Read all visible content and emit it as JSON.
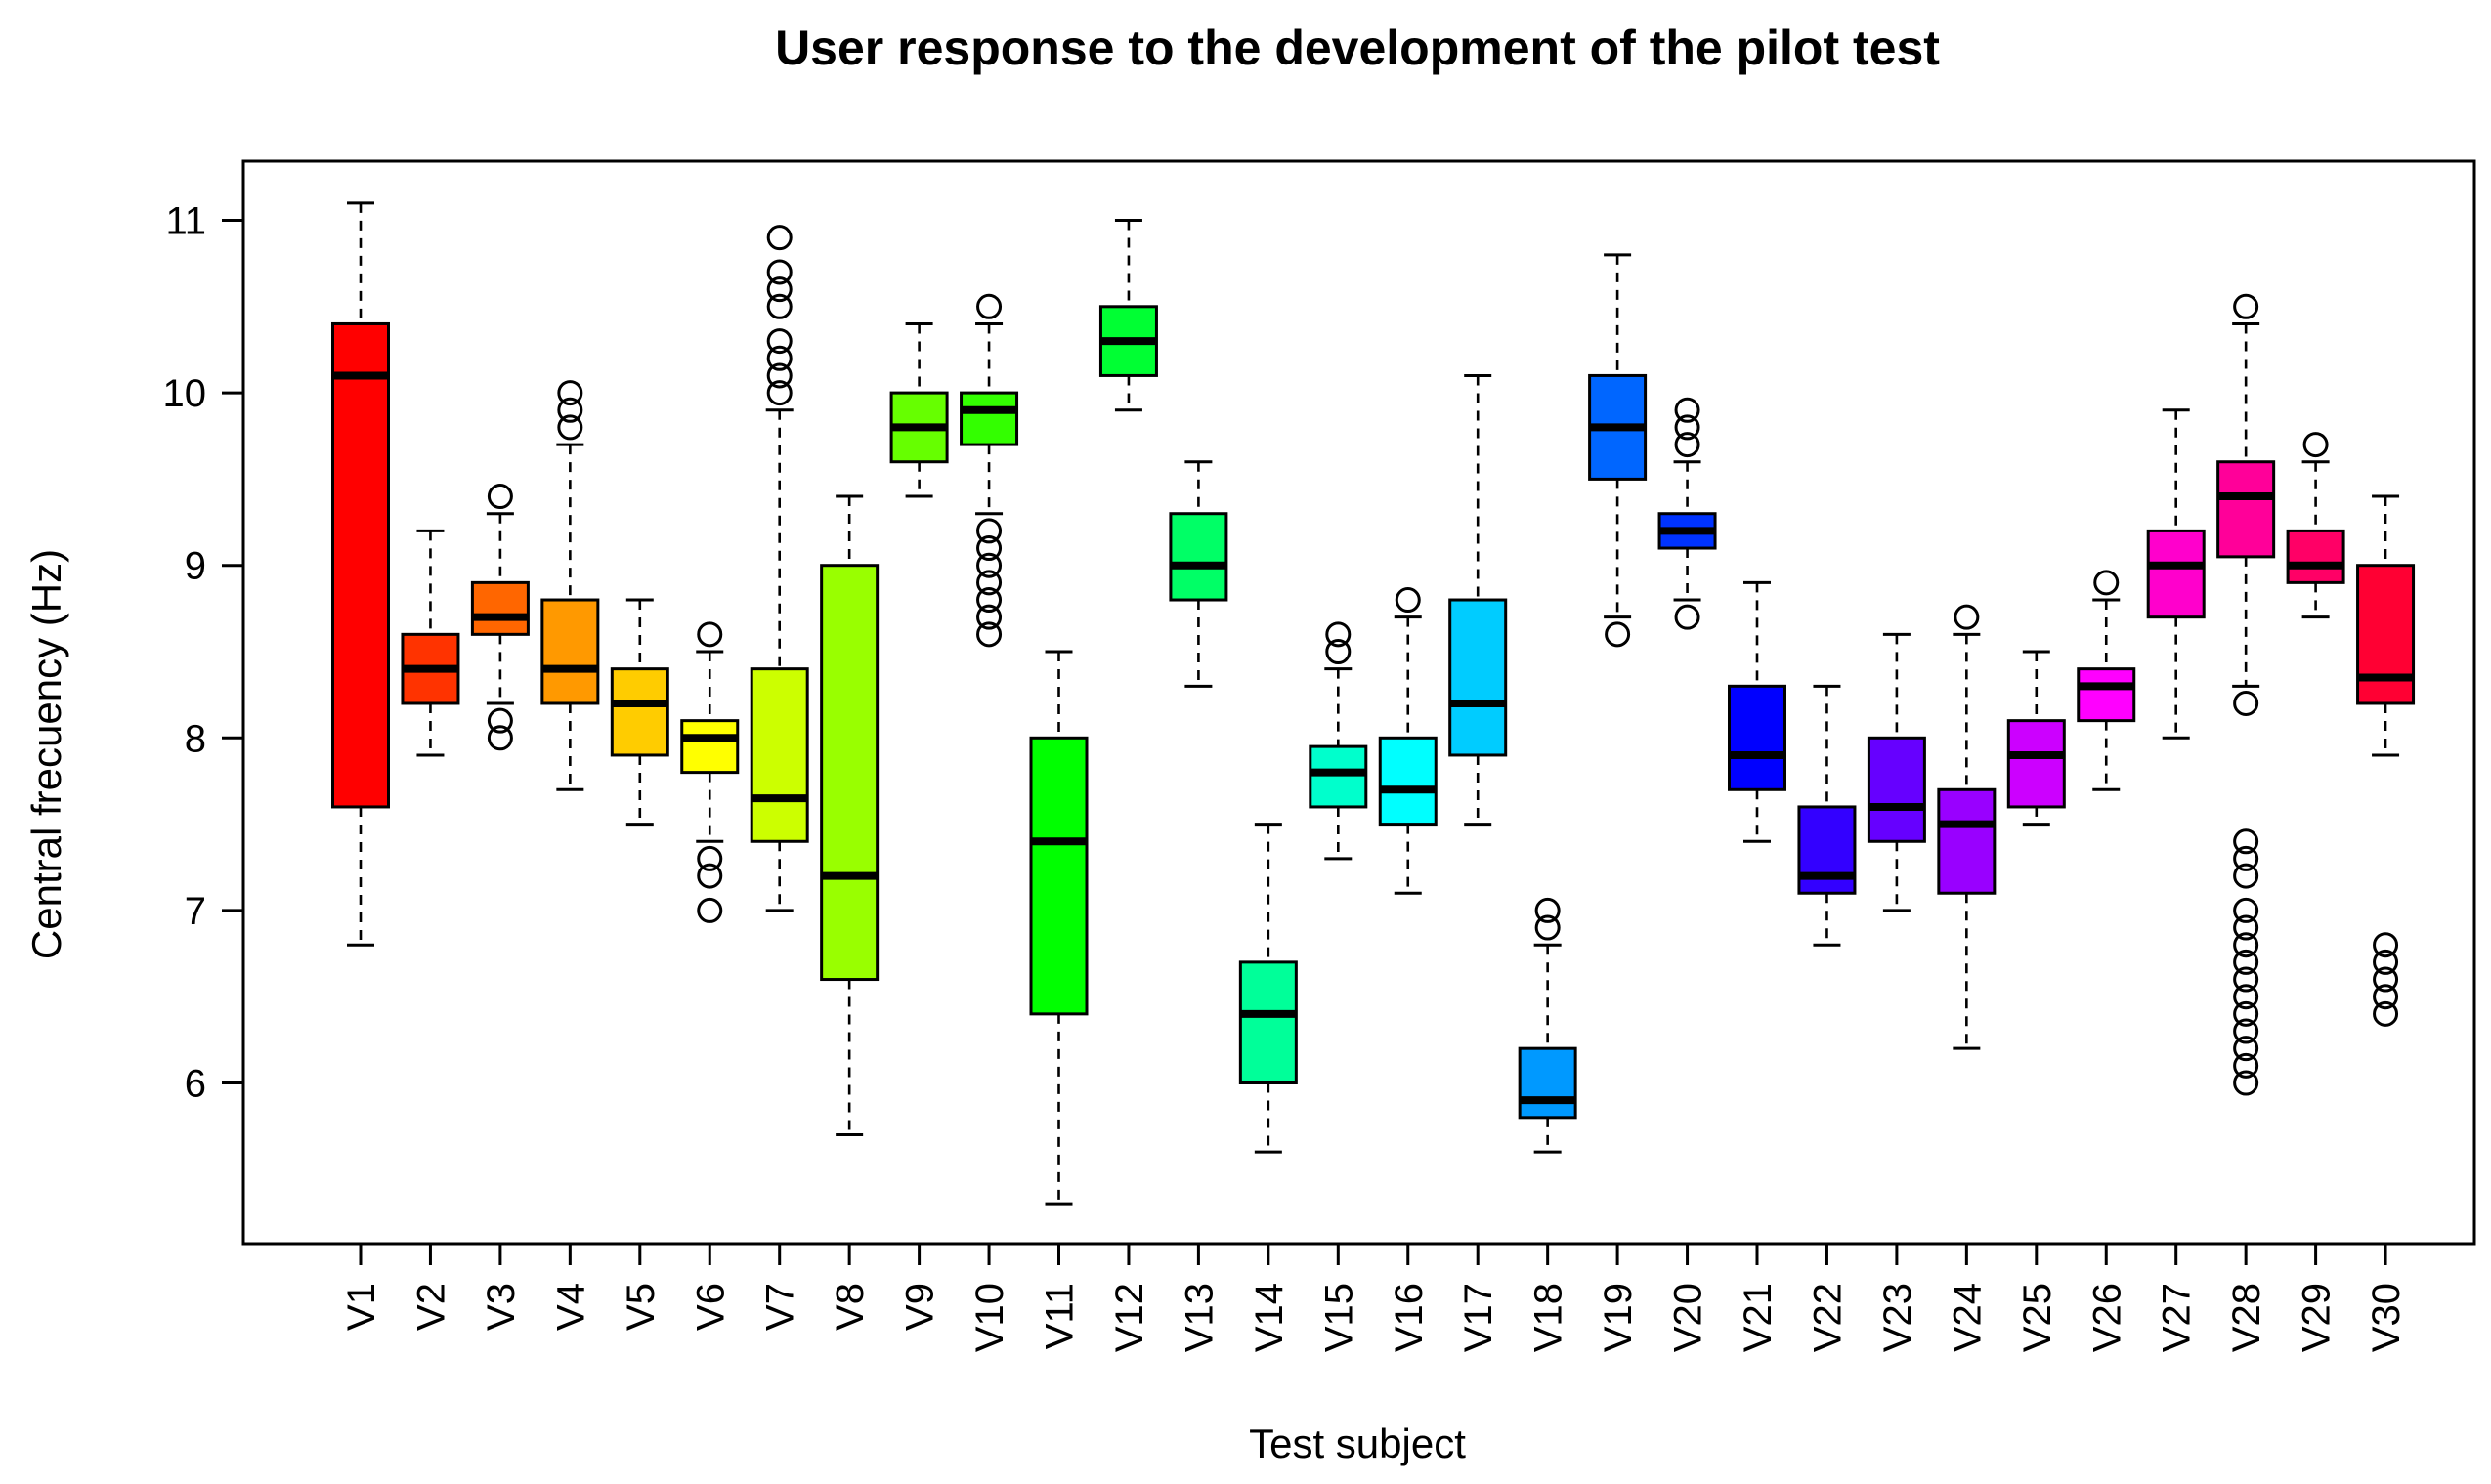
{
  "chart_data": {
    "type": "boxplot",
    "title": "User response to the development of the pilot test",
    "xlabel": "Test subject",
    "ylabel": "Central frecuency (Hz)",
    "ylim": [
      4.9,
      11.45
    ],
    "yticks": [
      6,
      7,
      8,
      9,
      10,
      11
    ],
    "categories": [
      "V1",
      "V2",
      "V3",
      "V4",
      "V5",
      "V6",
      "V7",
      "V8",
      "V9",
      "V10",
      "V11",
      "V12",
      "V13",
      "V14",
      "V15",
      "V16",
      "V17",
      "V18",
      "V19",
      "V20",
      "V21",
      "V22",
      "V23",
      "V24",
      "V25",
      "V26",
      "V27",
      "V28",
      "V29",
      "V30"
    ],
    "colors": [
      "#FF0000",
      "#FF3300",
      "#FF6600",
      "#FF9900",
      "#FFCC00",
      "#FFFF00",
      "#CCFF00",
      "#99FF00",
      "#66FF00",
      "#33FF00",
      "#00FF00",
      "#00FF33",
      "#00FF66",
      "#00FF99",
      "#00FFCC",
      "#00FFFF",
      "#00CCFF",
      "#0099FF",
      "#0066FF",
      "#0033FF",
      "#0000FF",
      "#3300FF",
      "#6600FF",
      "#9900FF",
      "#CC00FF",
      "#FF00FF",
      "#FF00CC",
      "#FF0099",
      "#FF0066",
      "#FF0033"
    ],
    "series": [
      {
        "name": "V1",
        "whisker_low": 6.8,
        "q1": 7.6,
        "median": 10.1,
        "q3": 10.4,
        "whisker_high": 11.1,
        "outliers": []
      },
      {
        "name": "V2",
        "whisker_low": 7.9,
        "q1": 8.2,
        "median": 8.4,
        "q3": 8.6,
        "whisker_high": 9.2,
        "outliers": []
      },
      {
        "name": "V3",
        "whisker_low": 8.2,
        "q1": 8.6,
        "median": 8.7,
        "q3": 8.9,
        "whisker_high": 9.3,
        "outliers": [
          8.0,
          8.1,
          9.4
        ]
      },
      {
        "name": "V4",
        "whisker_low": 7.7,
        "q1": 8.2,
        "median": 8.4,
        "q3": 8.8,
        "whisker_high": 9.7,
        "outliers": [
          9.8,
          9.9,
          10.0
        ]
      },
      {
        "name": "V5",
        "whisker_low": 7.5,
        "q1": 7.9,
        "median": 8.2,
        "q3": 8.4,
        "whisker_high": 8.8,
        "outliers": []
      },
      {
        "name": "V6",
        "whisker_low": 7.4,
        "q1": 7.8,
        "median": 8.0,
        "q3": 8.1,
        "whisker_high": 8.5,
        "outliers": [
          7.0,
          7.2,
          7.3,
          8.6
        ]
      },
      {
        "name": "V7",
        "whisker_low": 7.0,
        "q1": 7.4,
        "median": 7.65,
        "q3": 8.4,
        "whisker_high": 9.9,
        "outliers": [
          10.0,
          10.1,
          10.2,
          10.3,
          10.5,
          10.6,
          10.7,
          10.9
        ]
      },
      {
        "name": "V8",
        "whisker_low": 5.7,
        "q1": 6.6,
        "median": 7.2,
        "q3": 9.0,
        "whisker_high": 9.4,
        "outliers": []
      },
      {
        "name": "V9",
        "whisker_low": 9.4,
        "q1": 9.6,
        "median": 9.8,
        "q3": 10.0,
        "whisker_high": 10.4,
        "outliers": []
      },
      {
        "name": "V10",
        "whisker_low": 9.3,
        "q1": 9.7,
        "median": 9.9,
        "q3": 10.0,
        "whisker_high": 10.4,
        "outliers": [
          8.6,
          8.7,
          8.8,
          8.9,
          9.0,
          9.1,
          9.2,
          10.5
        ]
      },
      {
        "name": "V11",
        "whisker_low": 5.3,
        "q1": 6.4,
        "median": 7.4,
        "q3": 8.0,
        "whisker_high": 8.5,
        "outliers": []
      },
      {
        "name": "V12",
        "whisker_low": 9.9,
        "q1": 10.1,
        "median": 10.3,
        "q3": 10.5,
        "whisker_high": 11.0,
        "outliers": []
      },
      {
        "name": "V13",
        "whisker_low": 8.3,
        "q1": 8.8,
        "median": 9.0,
        "q3": 9.3,
        "whisker_high": 9.6,
        "outliers": []
      },
      {
        "name": "V14",
        "whisker_low": 5.6,
        "q1": 6.0,
        "median": 6.4,
        "q3": 6.7,
        "whisker_high": 7.5,
        "outliers": []
      },
      {
        "name": "V15",
        "whisker_low": 7.3,
        "q1": 7.6,
        "median": 7.8,
        "q3": 7.95,
        "whisker_high": 8.4,
        "outliers": [
          8.5,
          8.6
        ]
      },
      {
        "name": "V16",
        "whisker_low": 7.1,
        "q1": 7.5,
        "median": 7.7,
        "q3": 8.0,
        "whisker_high": 8.7,
        "outliers": [
          8.8
        ]
      },
      {
        "name": "V17",
        "whisker_low": 7.5,
        "q1": 7.9,
        "median": 8.2,
        "q3": 8.8,
        "whisker_high": 10.1,
        "outliers": []
      },
      {
        "name": "V18",
        "whisker_low": 5.6,
        "q1": 5.8,
        "median": 5.9,
        "q3": 6.2,
        "whisker_high": 6.8,
        "outliers": [
          6.9,
          7.0
        ]
      },
      {
        "name": "V19",
        "whisker_low": 8.7,
        "q1": 9.5,
        "median": 9.8,
        "q3": 10.1,
        "whisker_high": 10.8,
        "outliers": [
          8.6
        ]
      },
      {
        "name": "V20",
        "whisker_low": 8.8,
        "q1": 9.1,
        "median": 9.2,
        "q3": 9.3,
        "whisker_high": 9.6,
        "outliers": [
          8.7,
          9.7,
          9.8,
          9.9
        ]
      },
      {
        "name": "V21",
        "whisker_low": 7.4,
        "q1": 7.7,
        "median": 7.9,
        "q3": 8.3,
        "whisker_high": 8.9,
        "outliers": []
      },
      {
        "name": "V22",
        "whisker_low": 6.8,
        "q1": 7.1,
        "median": 7.2,
        "q3": 7.6,
        "whisker_high": 8.3,
        "outliers": []
      },
      {
        "name": "V23",
        "whisker_low": 7.0,
        "q1": 7.4,
        "median": 7.6,
        "q3": 8.0,
        "whisker_high": 8.6,
        "outliers": []
      },
      {
        "name": "V24",
        "whisker_low": 6.2,
        "q1": 7.1,
        "median": 7.5,
        "q3": 7.7,
        "whisker_high": 8.6,
        "outliers": [
          8.7
        ]
      },
      {
        "name": "V25",
        "whisker_low": 7.5,
        "q1": 7.6,
        "median": 7.9,
        "q3": 8.1,
        "whisker_high": 8.5,
        "outliers": []
      },
      {
        "name": "V26",
        "whisker_low": 7.7,
        "q1": 8.1,
        "median": 8.3,
        "q3": 8.4,
        "whisker_high": 8.8,
        "outliers": [
          8.9
        ]
      },
      {
        "name": "V27",
        "whisker_low": 8.0,
        "q1": 8.7,
        "median": 9.0,
        "q3": 9.2,
        "whisker_high": 9.9,
        "outliers": []
      },
      {
        "name": "V28",
        "whisker_low": 8.3,
        "q1": 9.05,
        "median": 9.4,
        "q3": 9.6,
        "whisker_high": 10.4,
        "outliers": [
          6.0,
          6.1,
          6.2,
          6.3,
          6.4,
          6.5,
          6.6,
          6.7,
          6.8,
          6.9,
          7.0,
          7.2,
          7.3,
          7.4,
          8.2,
          10.5
        ]
      },
      {
        "name": "V29",
        "whisker_low": 8.7,
        "q1": 8.9,
        "median": 9.0,
        "q3": 9.2,
        "whisker_high": 9.6,
        "outliers": [
          9.7
        ]
      },
      {
        "name": "V30",
        "whisker_low": 7.9,
        "q1": 8.2,
        "median": 8.35,
        "q3": 9.0,
        "whisker_high": 9.4,
        "outliers": [
          6.4,
          6.5,
          6.6,
          6.7,
          6.8
        ]
      }
    ]
  }
}
